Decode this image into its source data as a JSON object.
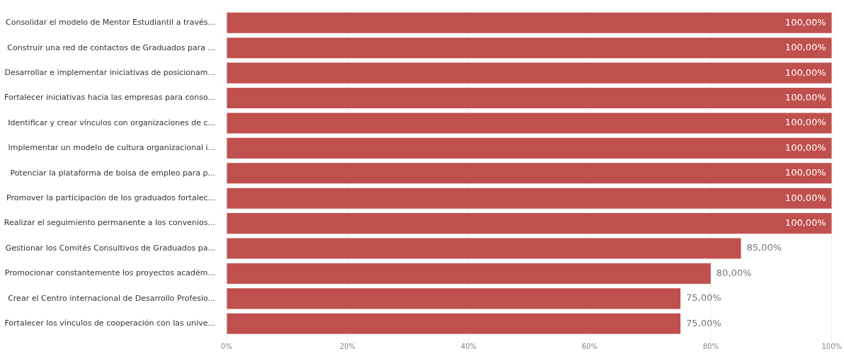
{
  "chart_data": {
    "type": "bar",
    "orientation": "horizontal",
    "categories": [
      "Consolidar el modelo de Mentor Estudiantil a través...",
      "Construir una red de contactos de Graduados para ...",
      "Desarrollar e implementar iniciativas de posicionam...",
      "Fortalecer iniciativas hacia las empresas para conso...",
      "Identificar y crear vínculos con organizaciones de c...",
      "Implementar un modelo de cultura organizacional i...",
      "Potenciar la plataforma de bolsa de empleo para p...",
      "Promover la participación de los graduados fortalec...",
      "Realizar el seguimiento permanente a los convenios...",
      "Gestionar los Comités Consultivos de Graduados pa...",
      "Promocionar constantemente los proyectos académ...",
      "Crear el Centro internacional de Desarrollo Profesio...",
      "Fortalecer los vínculos de cooperación con las unive..."
    ],
    "values": [
      100,
      100,
      100,
      100,
      100,
      100,
      100,
      100,
      100,
      85,
      80,
      75,
      75
    ],
    "value_labels": [
      "100,00%",
      "100,00%",
      "100,00%",
      "100,00%",
      "100,00%",
      "100,00%",
      "100,00%",
      "100,00%",
      "100,00%",
      "85,00%",
      "80,00%",
      "75,00%",
      "75,00%"
    ],
    "color": "#c0504d",
    "xlim": [
      0,
      100
    ],
    "xticks": [
      {
        "value": 0,
        "label": "0%"
      },
      {
        "value": 20,
        "label": "20%"
      },
      {
        "value": 40,
        "label": "40%"
      },
      {
        "value": 60,
        "label": "60%"
      },
      {
        "value": 80,
        "label": "80%"
      },
      {
        "value": 100,
        "label": "100%"
      }
    ],
    "grid": "x"
  }
}
